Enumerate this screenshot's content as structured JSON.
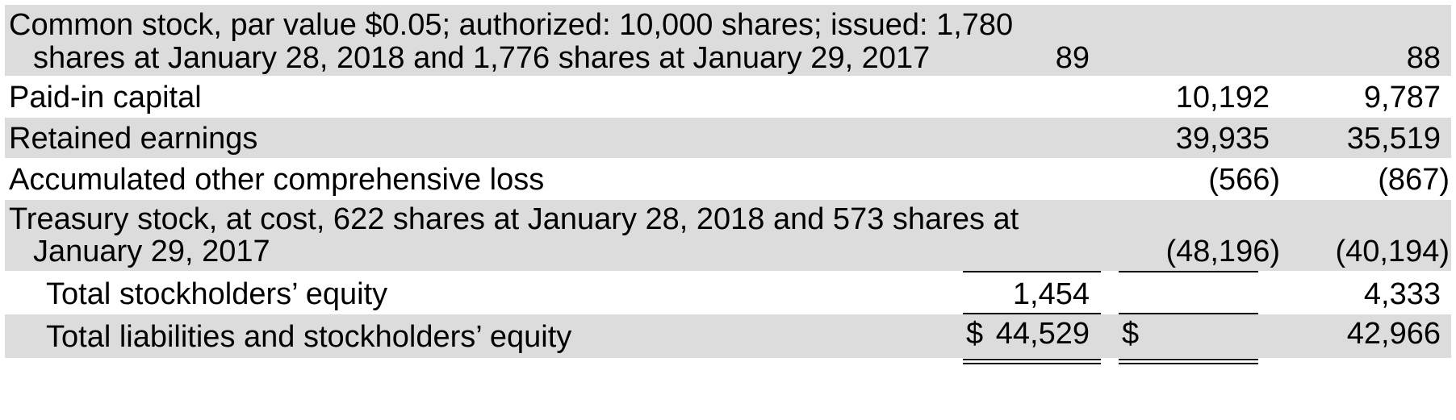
{
  "colors": {
    "shaded_row": "#dcdcdc",
    "text": "#000000",
    "rule": "#000000"
  },
  "rows": [
    {
      "label_line1": "Common stock, par value $0.05; authorized: 10,000 shares; issued: 1,780",
      "label_line2": "shares at January 28, 2018 and 1,776 shares at January 29, 2017",
      "value_2018": "89",
      "value_2017": "88"
    },
    {
      "label": "Paid-in capital",
      "value_2018": "10,192",
      "value_2017": "9,787"
    },
    {
      "label": "Retained earnings",
      "value_2018": "39,935",
      "value_2017": "35,519"
    },
    {
      "label": "Accumulated other comprehensive loss",
      "value_2018": "(566)",
      "value_2017": "(867)"
    },
    {
      "label_line1": "Treasury stock, at cost, 622 shares at January 28, 2018 and 573 shares at",
      "label_line2": "January 29, 2017",
      "value_2018": "(48,196)",
      "value_2017": "(40,194)"
    },
    {
      "label": "Total stockholders’ equity",
      "value_2018": "1,454",
      "value_2017": "4,333"
    },
    {
      "label": "Total liabilities and stockholders’ equity",
      "currency_2018": "$",
      "value_2018": "44,529",
      "currency_2017": "$",
      "value_2017": "42,966"
    }
  ]
}
